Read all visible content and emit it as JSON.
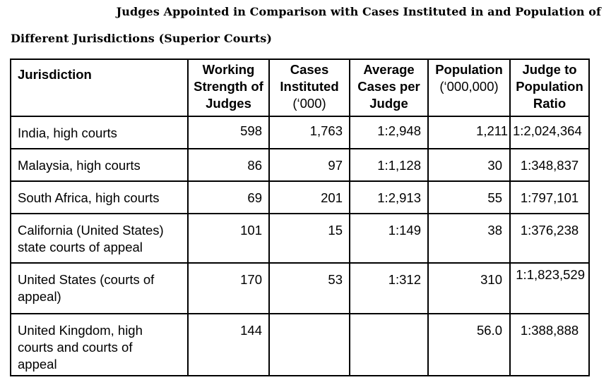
{
  "title": {
    "line1": "Judges Appointed in Comparison with Cases Instituted in and Population of",
    "line2": "Different Jurisdictions (Superior Courts)"
  },
  "table": {
    "headers": {
      "jurisdiction": "Jurisdiction",
      "working_strength": [
        "Working",
        "Strength of",
        "Judges"
      ],
      "cases_instituted": [
        "Cases",
        "Instituted",
        "(‘000)"
      ],
      "average_cases": [
        "Average",
        "Cases per",
        "Judge"
      ],
      "population": [
        "Population",
        "(‘000,000)"
      ],
      "ratio": [
        "Judge to",
        "Population",
        "Ratio"
      ]
    },
    "rows": [
      {
        "jurisdiction": [
          "India, high courts"
        ],
        "judges": "598",
        "cases": "1,763",
        "average": "1:2,948",
        "population": "1,211",
        "ratio": "1:2,024,364"
      },
      {
        "jurisdiction": [
          "Malaysia, high courts"
        ],
        "judges": "86",
        "cases": "97",
        "average": "1:1,128",
        "population": "30",
        "ratio": "1:348,837"
      },
      {
        "jurisdiction": [
          "South Africa, high courts"
        ],
        "judges": "69",
        "cases": "201",
        "average": "1:2,913",
        "population": "55",
        "ratio": "1:797,101"
      },
      {
        "jurisdiction": [
          "California (United States)",
          "state courts of appeal"
        ],
        "judges": "101",
        "cases": "15",
        "average": "1:149",
        "population": "38",
        "ratio": "1:376,238"
      },
      {
        "jurisdiction": [
          "United States (courts of",
          "appeal)"
        ],
        "judges": "170",
        "cases": "53",
        "average": "1:312",
        "population": "310",
        "ratio": "1:1,823,529"
      },
      {
        "jurisdiction": [
          "United Kingdom, high",
          "courts and courts of",
          "appeal"
        ],
        "judges": "144",
        "cases": "",
        "average": "",
        "population": "56.0",
        "ratio": "1:388,888"
      }
    ]
  }
}
